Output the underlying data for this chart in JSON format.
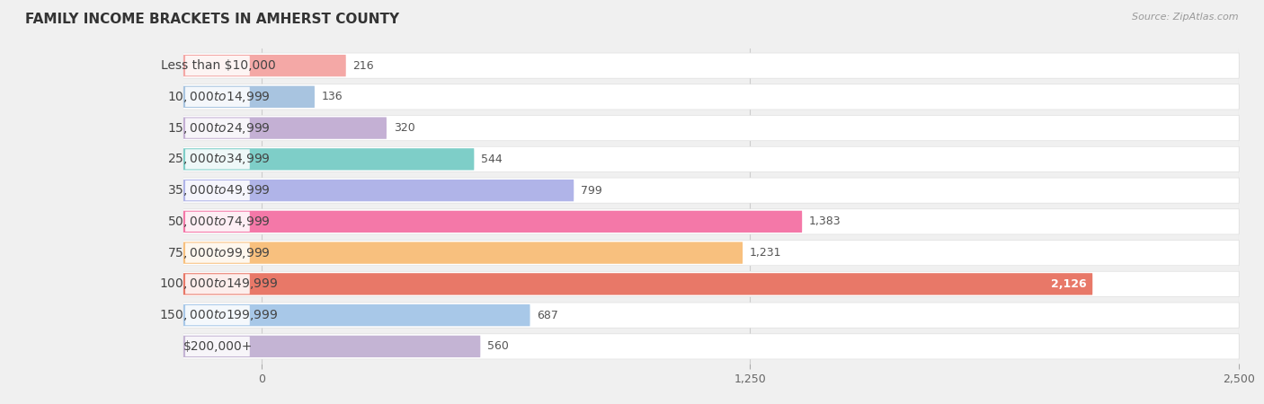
{
  "title": "FAMILY INCOME BRACKETS IN AMHERST COUNTY",
  "source": "Source: ZipAtlas.com",
  "categories": [
    "Less than $10,000",
    "$10,000 to $14,999",
    "$15,000 to $24,999",
    "$25,000 to $34,999",
    "$35,000 to $49,999",
    "$50,000 to $74,999",
    "$75,000 to $99,999",
    "$100,000 to $149,999",
    "$150,000 to $199,999",
    "$200,000+"
  ],
  "values": [
    216,
    136,
    320,
    544,
    799,
    1383,
    1231,
    2126,
    687,
    560
  ],
  "bar_colors": [
    "#f4a8a6",
    "#a8c4e0",
    "#c4b0d4",
    "#7ecec8",
    "#b0b4e8",
    "#f478a8",
    "#f8c07e",
    "#e87868",
    "#a8c8e8",
    "#c4b4d4"
  ],
  "xlim": [
    0,
    2500
  ],
  "xticks": [
    0,
    1250,
    2500
  ],
  "bg_color": "#f0f0f0",
  "row_bg_color": "#f5f5f5",
  "label_fontsize": 10,
  "value_fontsize": 9,
  "title_fontsize": 11
}
